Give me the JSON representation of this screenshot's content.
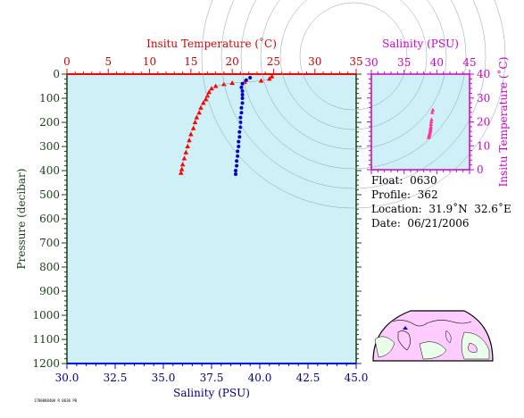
{
  "info": {
    "float_label": "Float:",
    "float_value": "0630",
    "profile_label": "Profile:",
    "profile_value": "362",
    "location_label": "Location:",
    "location_value": "31.9˚N  32.6˚E",
    "date_label": "Date:",
    "date_value": "06/21/2006"
  },
  "footer_code": "1700080400 R 0630 P0",
  "colors": {
    "temperature": "#ff0000",
    "salinity": "#0000cc",
    "ts_points": "#ff3399",
    "ts_axis": "#cc00cc",
    "plot_bg": "#d0f0f8",
    "pressure_axis": "#1a3d1a"
  },
  "chart_data": [
    {
      "type": "scatter",
      "top_axis_title": "Insitu Temperature (˚C)",
      "bottom_axis_title": "Salinity (PSU)",
      "left_axis_title": "Pressure (decibar)",
      "temp_xlim": [
        0,
        35
      ],
      "temp_ticks": [
        "0",
        "5",
        "10",
        "15",
        "20",
        "25",
        "30",
        "35"
      ],
      "sal_xlim": [
        30.0,
        45.0
      ],
      "sal_ticks": [
        "30.0",
        "32.5",
        "35.0",
        "37.5",
        "40.0",
        "42.5",
        "45.0"
      ],
      "pressure_ylim": [
        0,
        1200
      ],
      "pressure_ticks": [
        "0",
        "100",
        "200",
        "300",
        "400",
        "500",
        "600",
        "700",
        "800",
        "900",
        "1000",
        "1100",
        "1200"
      ],
      "series": [
        {
          "name": "Insitu Temperature",
          "axis": "temperature",
          "points": [
            [
              24.8,
              10
            ],
            [
              24.5,
              20
            ],
            [
              23.5,
              28
            ],
            [
              21.5,
              33
            ],
            [
              20.0,
              37
            ],
            [
              19.0,
              42
            ],
            [
              18.0,
              50
            ],
            [
              17.5,
              60
            ],
            [
              17.2,
              75
            ],
            [
              17.0,
              90
            ],
            [
              16.8,
              105
            ],
            [
              16.5,
              120
            ],
            [
              16.2,
              140
            ],
            [
              16.0,
              160
            ],
            [
              15.7,
              180
            ],
            [
              15.5,
              200
            ],
            [
              15.3,
              225
            ],
            [
              15.0,
              250
            ],
            [
              14.8,
              275
            ],
            [
              14.6,
              300
            ],
            [
              14.4,
              325
            ],
            [
              14.2,
              350
            ],
            [
              14.0,
              375
            ],
            [
              13.9,
              395
            ],
            [
              13.8,
              410
            ]
          ]
        },
        {
          "name": "Salinity",
          "axis": "salinity",
          "points": [
            [
              39.5,
              15
            ],
            [
              39.3,
              25
            ],
            [
              39.1,
              40
            ],
            [
              39.05,
              55
            ],
            [
              39.1,
              70
            ],
            [
              39.1,
              85
            ],
            [
              39.1,
              100
            ],
            [
              39.1,
              120
            ],
            [
              39.05,
              140
            ],
            [
              39.05,
              160
            ],
            [
              39.0,
              180
            ],
            [
              39.0,
              200
            ],
            [
              39.0,
              220
            ],
            [
              38.95,
              240
            ],
            [
              38.95,
              260
            ],
            [
              38.9,
              280
            ],
            [
              38.9,
              300
            ],
            [
              38.85,
              320
            ],
            [
              38.85,
              340
            ],
            [
              38.8,
              360
            ],
            [
              38.8,
              380
            ],
            [
              38.75,
              400
            ],
            [
              38.75,
              415
            ]
          ]
        }
      ]
    },
    {
      "type": "scatter",
      "title": "Salinity (PSU)",
      "right_axis_title": "Insitu Temperature (˚C)",
      "xlim": [
        30,
        45
      ],
      "x_ticks": [
        "30",
        "35",
        "40",
        "45"
      ],
      "ylim": [
        0,
        40
      ],
      "y_ticks": [
        "0",
        "10",
        "20",
        "30",
        "40"
      ],
      "points": [
        [
          39.4,
          25
        ],
        [
          39.3,
          24
        ],
        [
          39.2,
          21
        ],
        [
          39.15,
          20
        ],
        [
          39.1,
          19
        ],
        [
          39.1,
          18
        ],
        [
          39.05,
          17.5
        ],
        [
          39.05,
          17
        ],
        [
          39.0,
          16.5
        ],
        [
          39.0,
          16
        ],
        [
          38.95,
          15.5
        ],
        [
          38.9,
          15
        ],
        [
          38.85,
          14.5
        ],
        [
          38.8,
          14.0
        ],
        [
          38.8,
          13.8
        ],
        [
          38.75,
          13.5
        ]
      ]
    }
  ],
  "map": {
    "marker_lat": 31.9,
    "marker_lon": 32.6
  }
}
